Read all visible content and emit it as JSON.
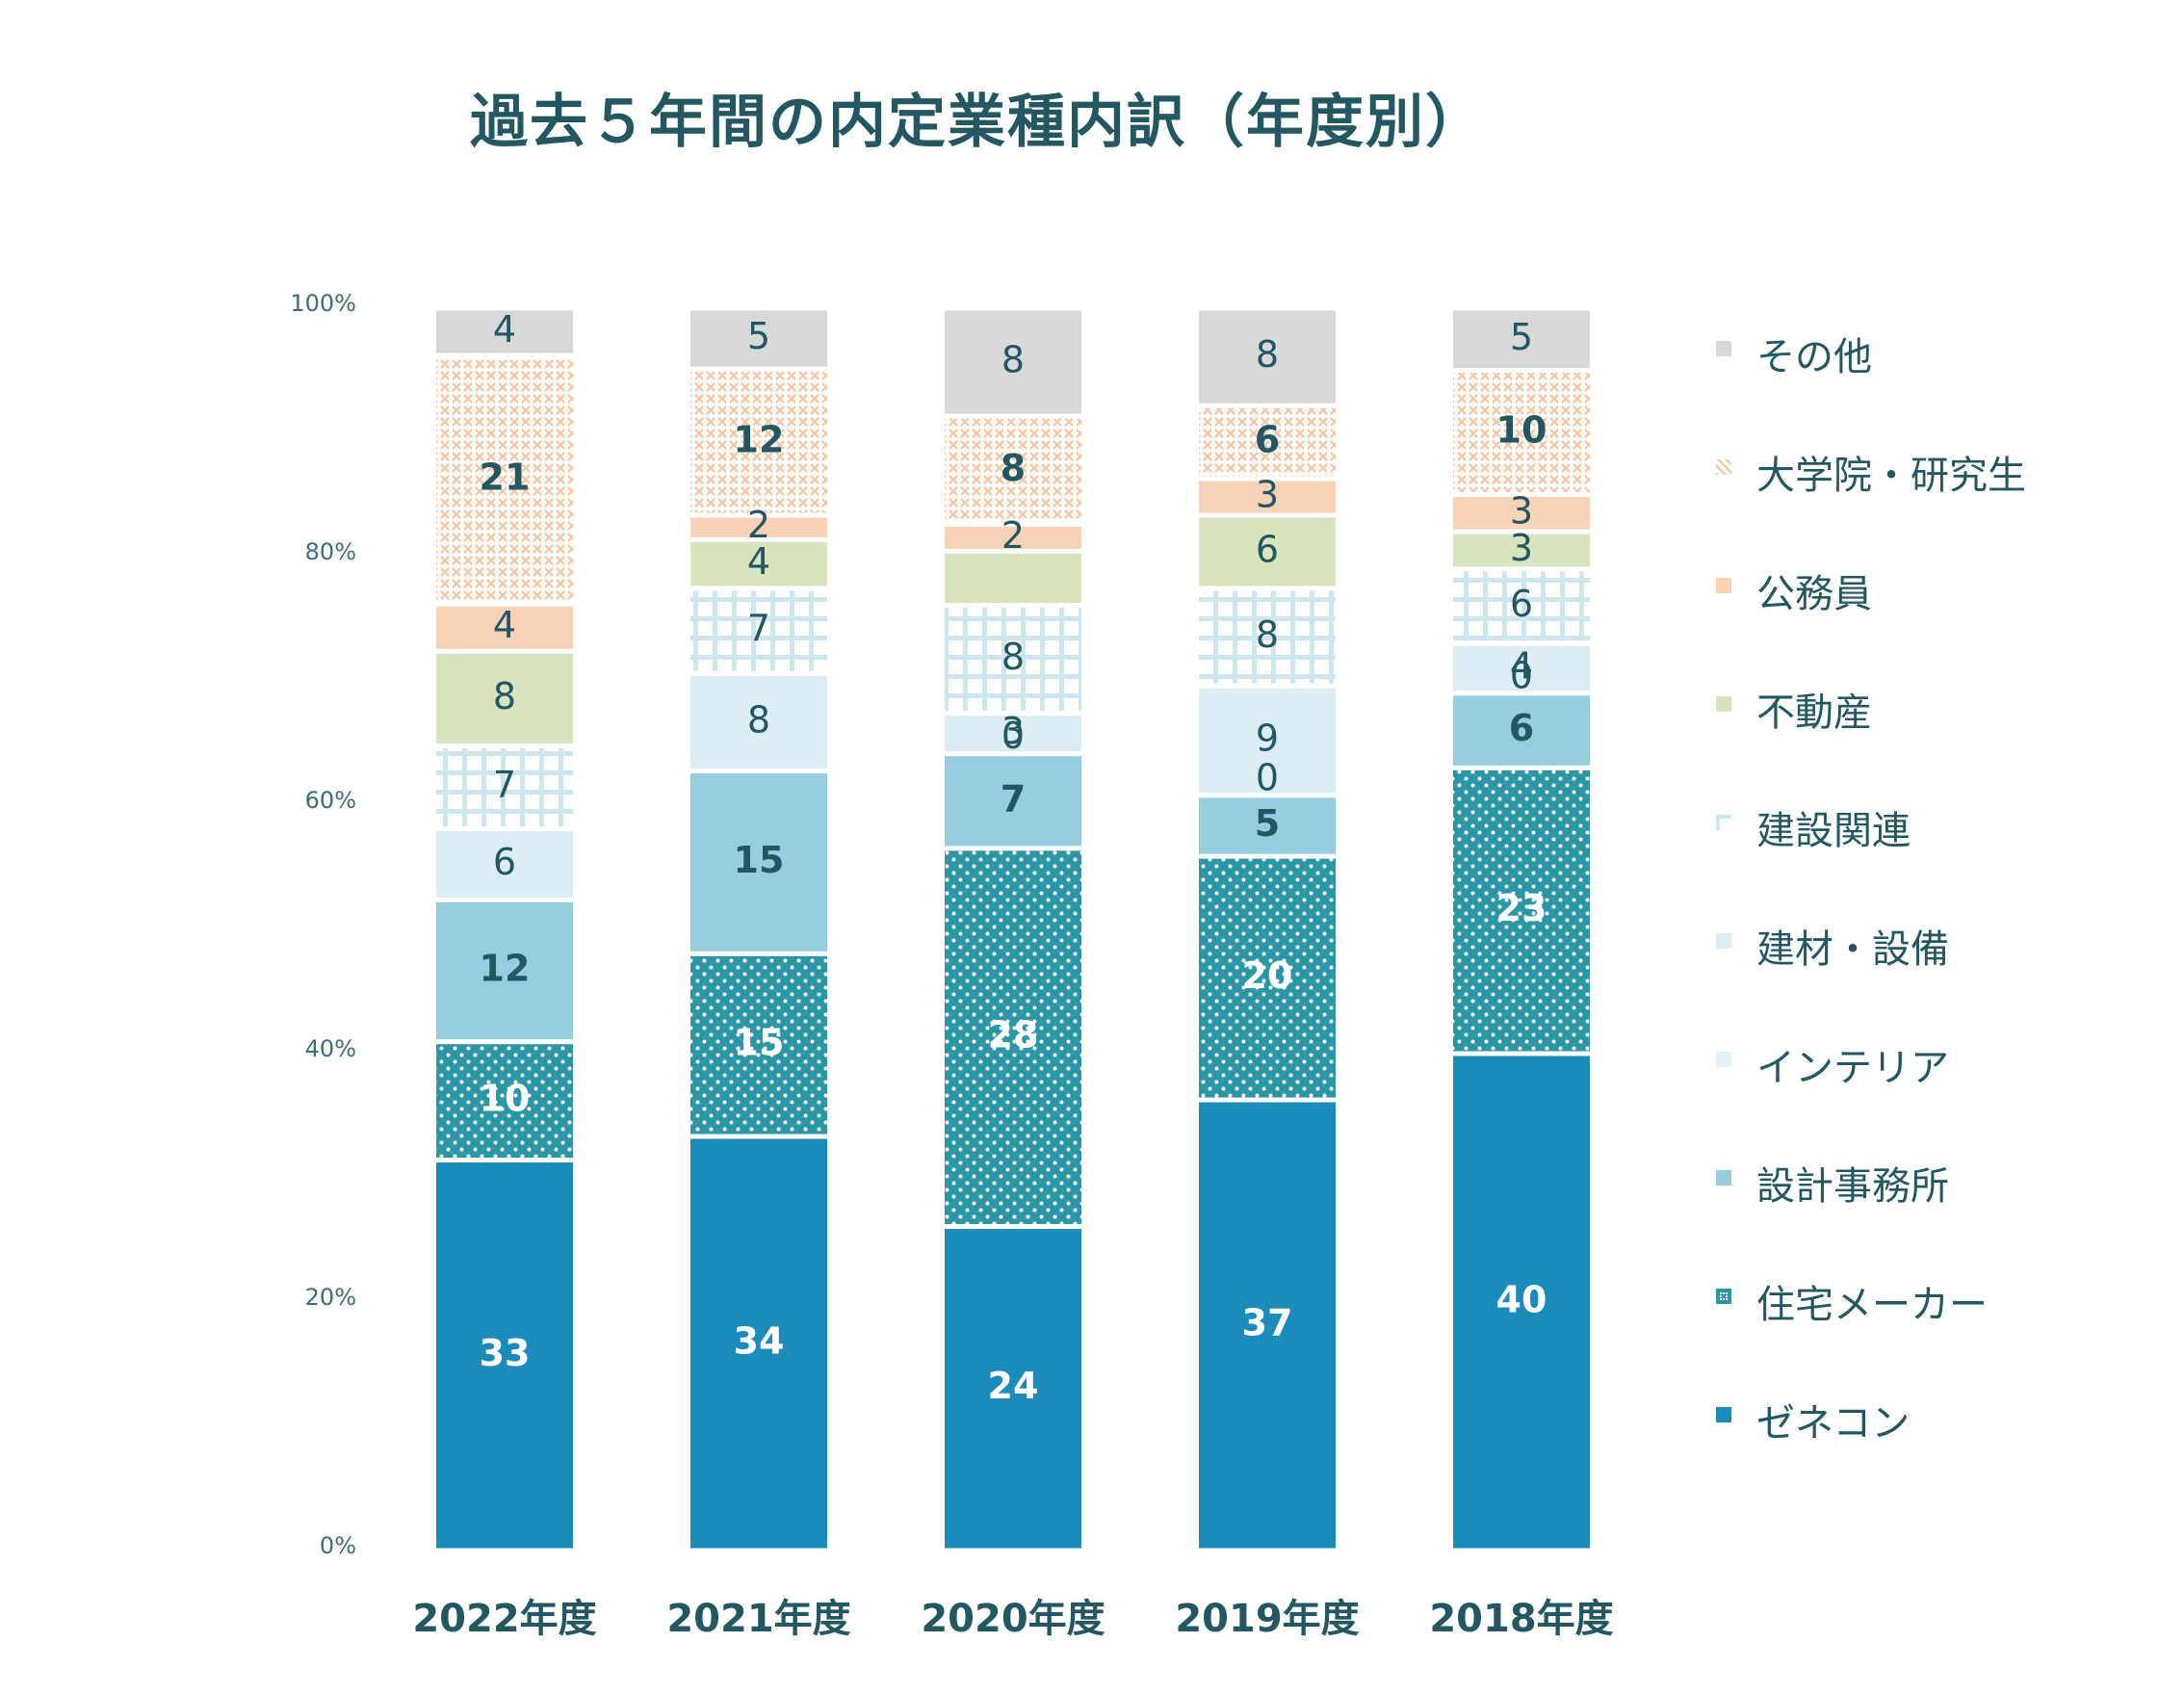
{
  "title": "過去５年間の内定業種内訳（年度別）",
  "colors": {
    "text": "#235863",
    "axis_text": "#3a6e78",
    "label_dark": "#235863",
    "label_light": "#ffffff"
  },
  "chart_data": {
    "type": "bar",
    "stacked": true,
    "normalized": "percent",
    "title": "過去５年間の内定業種内訳（年度別）",
    "categories": [
      "2022年度",
      "2021年度",
      "2020年度",
      "2019年度",
      "2018年度"
    ],
    "y_ticks": [
      "0%",
      "20%",
      "40%",
      "60%",
      "80%",
      "100%"
    ],
    "ylim": [
      0,
      100
    ],
    "legend_position": "right",
    "series": [
      {
        "name": "ゼネコン",
        "values": [
          33,
          34,
          24,
          37,
          40
        ],
        "color": "#1b8bbb",
        "pattern": "solid",
        "labels": [
          "33",
          "34",
          "24",
          "37",
          "40"
        ],
        "label_color": "#ffffff",
        "label_bold": true
      },
      {
        "name": "住宅メーカー",
        "values": [
          10,
          15,
          28,
          20,
          23
        ],
        "color": "#2a96a6",
        "pattern": "dots",
        "labels": [
          "10",
          "15",
          "28",
          "20",
          "23"
        ],
        "label_color": "#ffffff",
        "label_bold": true
      },
      {
        "name": "設計事務所",
        "values": [
          12,
          15,
          7,
          5,
          6
        ],
        "color": "#96cddf",
        "pattern": "solid",
        "labels": [
          "12",
          "15",
          "7",
          "5",
          "6"
        ],
        "label_color": "#235863",
        "label_bold": true
      },
      {
        "name": "インテリア",
        "values": [
          0,
          0,
          0,
          0,
          0
        ],
        "color": "#e2f1f6",
        "pattern": "solid",
        "labels": [
          "",
          "",
          "0",
          "0",
          "0"
        ],
        "label_color": "#235863",
        "label_bold": false
      },
      {
        "name": "建材・設備",
        "values": [
          6,
          8,
          3,
          9,
          4
        ],
        "color": "#dcedf3",
        "pattern": "solid",
        "labels": [
          "6",
          "8",
          "3",
          "9",
          "4"
        ],
        "label_color": "#235863",
        "label_bold": false
      },
      {
        "name": "建設関連",
        "values": [
          7,
          7,
          8,
          8,
          6
        ],
        "color": "#cfe6ee",
        "pattern": "grid",
        "labels": [
          "7",
          "7",
          "8",
          "8",
          "6"
        ],
        "label_color": "#235863",
        "label_bold": false
      },
      {
        "name": "不動産",
        "values": [
          8,
          4,
          4,
          6,
          3
        ],
        "color": "#d7e4be",
        "pattern": "solid",
        "labels": [
          "8",
          "4",
          "",
          "6",
          "3"
        ],
        "label_color": "#235863",
        "label_bold": false
      },
      {
        "name": "公務員",
        "values": [
          4,
          2,
          2,
          3,
          3
        ],
        "color": "#f8d3b7",
        "pattern": "solid",
        "labels": [
          "4",
          "2",
          "2",
          "3",
          "3"
        ],
        "label_color": "#235863",
        "label_bold": false
      },
      {
        "name": "大学院・研究生",
        "values": [
          21,
          12,
          8,
          6,
          10
        ],
        "color": "#f3c6a6",
        "pattern": "crosshatch",
        "labels": [
          "21",
          "12",
          "8",
          "6",
          "10"
        ],
        "label_color": "#235863",
        "label_bold": true
      },
      {
        "name": "その他",
        "values": [
          4,
          5,
          8,
          8,
          5
        ],
        "color": "#d9d9d9",
        "pattern": "solid",
        "labels": [
          "4",
          "5",
          "8",
          "8",
          "5"
        ],
        "label_color": "#235863",
        "label_bold": false
      }
    ],
    "legend_order": [
      "その他",
      "大学院・研究生",
      "公務員",
      "不動産",
      "建設関連",
      "建材・設備",
      "インテリア",
      "設計事務所",
      "住宅メーカー",
      "ゼネコン"
    ]
  }
}
